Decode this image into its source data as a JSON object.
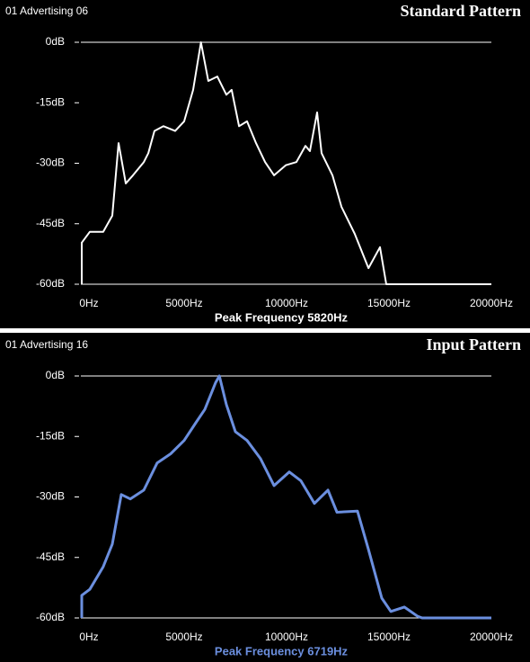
{
  "chart_data": [
    {
      "type": "line",
      "header": "01 Advertising 06",
      "title": "Standard Pattern",
      "annotation": "Peak Frequency 5820Hz",
      "annotation_color": "#ffffff",
      "x": [
        0,
        0,
        395,
        1050,
        1490,
        1800,
        2150,
        2500,
        3030,
        3250,
        3550,
        3990,
        4560,
        5000,
        5440,
        5820,
        6180,
        6620,
        7060,
        7320,
        7680,
        8070,
        8510,
        8950,
        9390,
        9960,
        10480,
        10920,
        11140,
        11490,
        11710,
        12240,
        12680,
        13330,
        14000,
        14560,
        14870,
        20000
      ],
      "series": [
        {
          "color": "#ffffff",
          "values": [
            -60,
            -49.7,
            -47,
            -47,
            -43,
            -25,
            -35,
            -33,
            -29.7,
            -27.5,
            -22,
            -20.8,
            -22,
            -19.6,
            -11.8,
            0,
            -9.6,
            -8.5,
            -13,
            -11.8,
            -20.8,
            -19.6,
            -25,
            -29.7,
            -33,
            -30.5,
            -29.7,
            -25.7,
            -27,
            -17.4,
            -27.5,
            -33,
            -40.8,
            -47.5,
            -56,
            -50.8,
            -60,
            -60
          ]
        }
      ],
      "xlim": [
        0,
        20000
      ],
      "ylim": [
        -60,
        0
      ],
      "xticks": [
        {
          "value": 0,
          "label": "0Hz"
        },
        {
          "value": 5000,
          "label": "5000Hz"
        },
        {
          "value": 10000,
          "label": "10000Hz"
        },
        {
          "value": 15000,
          "label": "15000Hz"
        },
        {
          "value": 20000,
          "label": "20000Hz"
        }
      ],
      "yticks": [
        {
          "value": 0,
          "label": "0dB"
        },
        {
          "value": -15,
          "label": "-15dB"
        },
        {
          "value": -30,
          "label": "-30dB"
        },
        {
          "value": -45,
          "label": "-45dB"
        },
        {
          "value": -60,
          "label": "-60dB"
        }
      ]
    },
    {
      "type": "line",
      "header": "01 Advertising 16",
      "title": "Input Pattern",
      "annotation": "Peak Frequency 6719Hz",
      "annotation_color": "#6b8fdf",
      "x": [
        0,
        0,
        395,
        1050,
        1490,
        1930,
        2370,
        3030,
        3680,
        4340,
        5000,
        5570,
        6010,
        6540,
        6719,
        7060,
        7500,
        8070,
        8730,
        9390,
        10130,
        10700,
        11360,
        12020,
        12460,
        13460,
        13990,
        14650,
        15090,
        15750,
        16400,
        16620,
        20000
      ],
      "series": [
        {
          "color": "#6b8fdf",
          "values": [
            -60,
            -54.4,
            -52.9,
            -47.3,
            -41.7,
            -29.4,
            -30.5,
            -28.3,
            -21.6,
            -19.3,
            -16,
            -11.6,
            -8.3,
            -1.6,
            0,
            -7.1,
            -13.8,
            -16,
            -20.5,
            -27.2,
            -23.8,
            -26,
            -31.6,
            -28.3,
            -33.8,
            -33.5,
            -42.9,
            -55.1,
            -58.4,
            -57.3,
            -59.6,
            -60,
            -60
          ]
        }
      ],
      "xlim": [
        0,
        20000
      ],
      "ylim": [
        -60,
        0
      ],
      "xticks": [
        {
          "value": 0,
          "label": "0Hz"
        },
        {
          "value": 5000,
          "label": "5000Hz"
        },
        {
          "value": 10000,
          "label": "10000Hz"
        },
        {
          "value": 15000,
          "label": "15000Hz"
        },
        {
          "value": 20000,
          "label": "20000Hz"
        }
      ],
      "yticks": [
        {
          "value": 0,
          "label": "0dB"
        },
        {
          "value": -15,
          "label": "-15dB"
        },
        {
          "value": -30,
          "label": "-30dB"
        },
        {
          "value": -45,
          "label": "-45dB"
        },
        {
          "value": -60,
          "label": "-60dB"
        }
      ]
    }
  ]
}
